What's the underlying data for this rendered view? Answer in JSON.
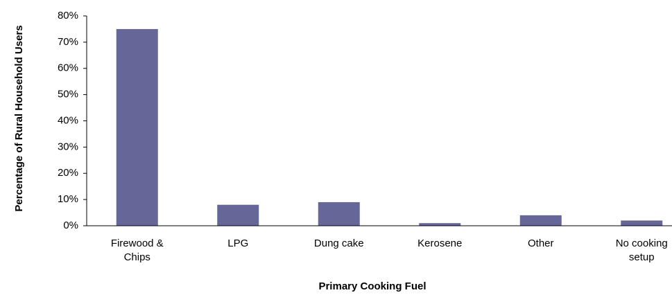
{
  "chart_data": {
    "type": "bar",
    "y_label": "Percentage of Rural Household Users",
    "x_label": "Primary Cooking Fuel",
    "categories": [
      "Firewood & Chips",
      "LPG",
      "Dung cake",
      "Kerosene",
      "Other",
      "No cooking setup"
    ],
    "values": [
      75,
      8,
      9,
      1,
      4,
      2
    ],
    "color": "#666699",
    "ylim": [
      0,
      80
    ],
    "yticks": [
      {
        "value": 0,
        "label": "0%"
      },
      {
        "value": 10,
        "label": "10%"
      },
      {
        "value": 20,
        "label": "20%"
      },
      {
        "value": 30,
        "label": "30%"
      },
      {
        "value": 40,
        "label": "40%"
      },
      {
        "value": 50,
        "label": "50%"
      },
      {
        "value": 60,
        "label": "60%"
      },
      {
        "value": 70,
        "label": "70%"
      },
      {
        "value": 80,
        "label": "80%"
      }
    ],
    "grid": false
  }
}
